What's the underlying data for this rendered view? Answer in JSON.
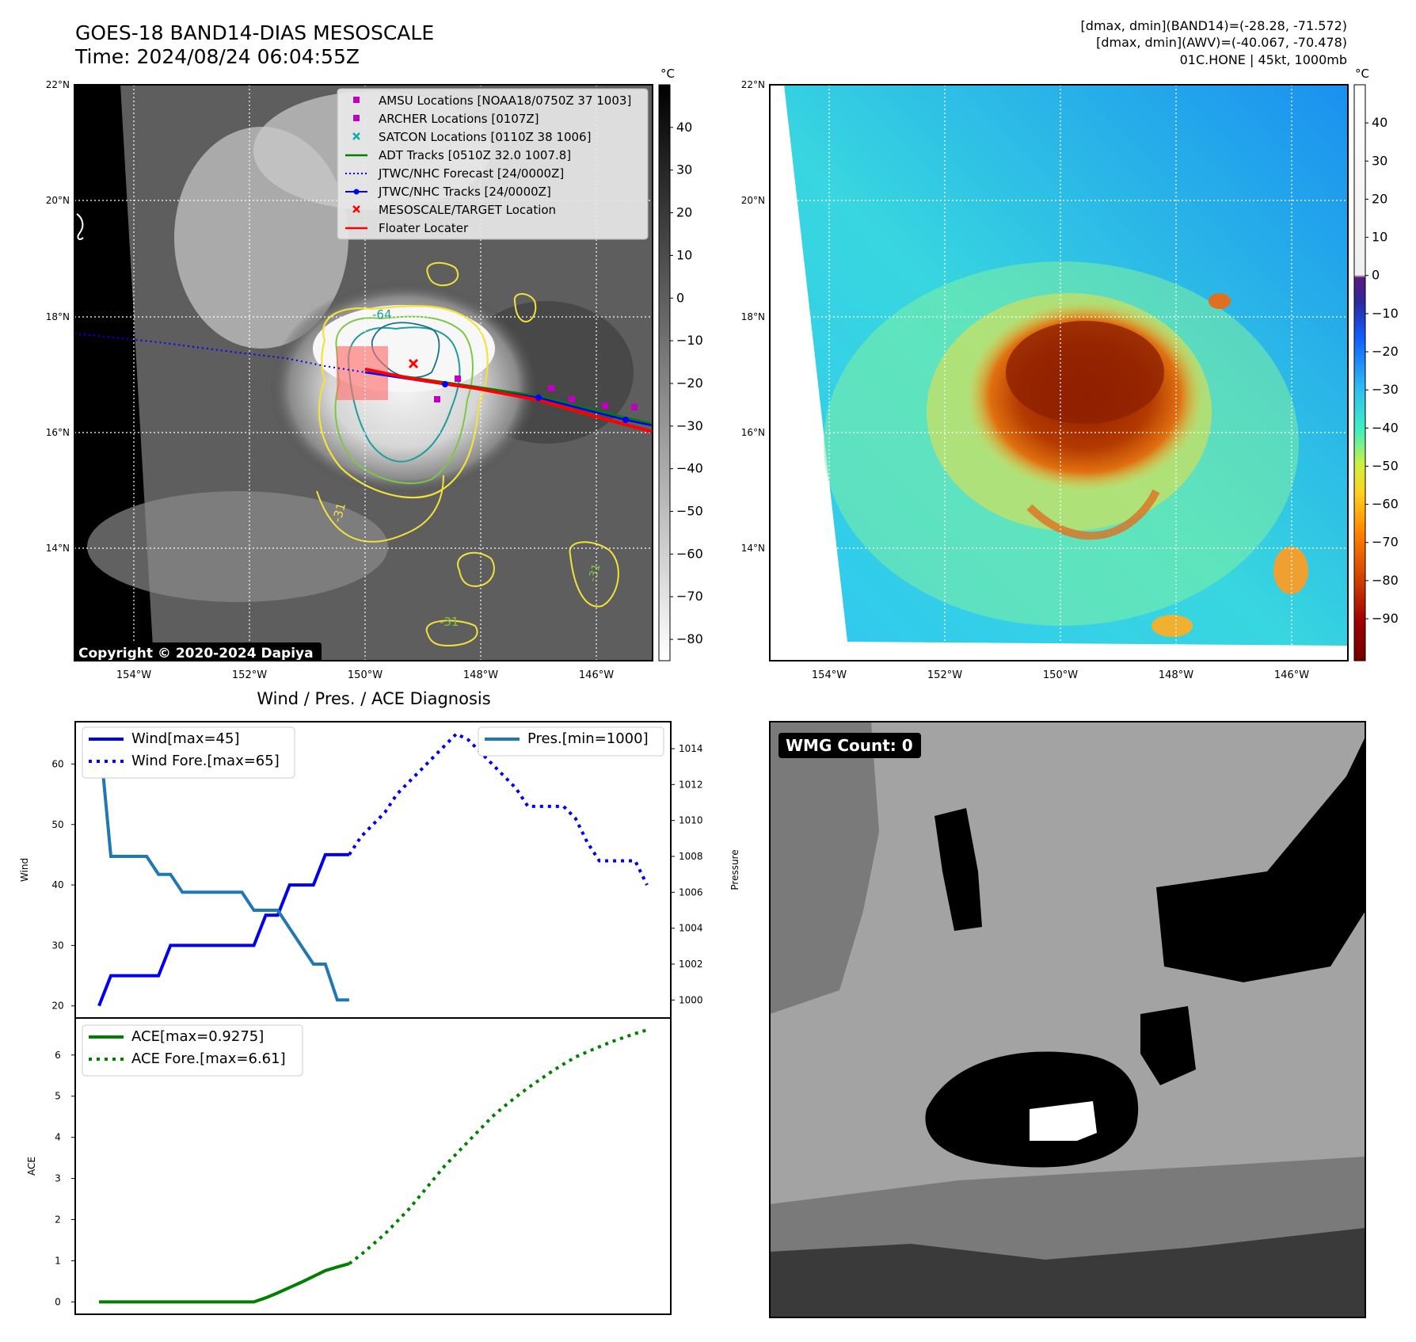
{
  "header": {
    "title_line1": "GOES-18 BAND14-DIAS MESOSCALE",
    "title_line2": "Time: 2024/08/24 06:04:55Z",
    "dmax_band14": "[dmax, dmin](BAND14)=(-28.28, -71.572)",
    "dmax_awv": "[dmax, dmin](AWV)=(-40.067, -70.478)",
    "storm_info": "01C.HONE | 45kt, 1000mb"
  },
  "map_left": {
    "lat_labels": [
      "22°N",
      "20°N",
      "18°N",
      "16°N",
      "14°N"
    ],
    "lon_labels": [
      "154°W",
      "152°W",
      "150°W",
      "148°W",
      "146°W"
    ],
    "copyright": "Copyright © 2020-2024 Dapiya",
    "contour_labels": [
      "-64",
      "-31",
      "-31",
      "-31"
    ],
    "legend": [
      {
        "label": "AMSU Locations [NOAA18/0750Z 37 1003]",
        "marker": "square",
        "color": "#c000c0"
      },
      {
        "label": "ARCHER Locations [0107Z]",
        "marker": "square",
        "color": "#c000c0"
      },
      {
        "label": "SATCON Locations [0110Z 38 1006]",
        "marker": "x",
        "color": "#00b0b0"
      },
      {
        "label": "ADT Tracks [0510Z 32.0 1007.8]",
        "marker": "line",
        "color": "#008000"
      },
      {
        "label": "JTWC/NHC Forecast [24/0000Z]",
        "marker": "dotted",
        "color": "#0000ff"
      },
      {
        "label": "JTWC/NHC Tracks [24/0000Z]",
        "marker": "line-dot",
        "color": "#0000ff"
      },
      {
        "label": "MESOSCALE/TARGET Location",
        "marker": "x",
        "color": "#ff0000"
      },
      {
        "label": "Floater Locater",
        "marker": "line",
        "color": "#ff0000"
      }
    ],
    "colorbar_unit": "°C",
    "colorbar_ticks": [
      "40",
      "30",
      "20",
      "10",
      "0",
      "−10",
      "−20",
      "−30",
      "−40",
      "−50",
      "−60",
      "−70",
      "−80"
    ]
  },
  "map_right": {
    "lat_labels": [
      "22°N",
      "20°N",
      "18°N",
      "16°N",
      "14°N"
    ],
    "lon_labels": [
      "154°W",
      "152°W",
      "150°W",
      "148°W",
      "146°W"
    ],
    "colorbar_unit": "°C",
    "colorbar_ticks": [
      "40",
      "30",
      "20",
      "10",
      "0",
      "−10",
      "−20",
      "−30",
      "−40",
      "−50",
      "−60",
      "−70",
      "−80",
      "−90"
    ]
  },
  "wmg": {
    "label": "WMG Count: 0"
  },
  "chart_data": [
    {
      "type": "line",
      "title": "Wind / Pres. / ACE Diagnosis",
      "ylabel": "Wind",
      "ylabel_right": "Pressure",
      "ylim": [
        18,
        67
      ],
      "ylim_right": [
        999,
        1015.5
      ],
      "yticks": [
        20,
        30,
        40,
        50,
        60
      ],
      "yticks_right": [
        1000,
        1002,
        1004,
        1006,
        1008,
        1010,
        1012,
        1014
      ],
      "legend": [
        "Wind[max=45]",
        "Wind Fore.[max=65]",
        "Pres.[min=1000]"
      ],
      "series": [
        {
          "name": "Wind[max=45]",
          "color": "#0000ee",
          "style": "solid",
          "axis": "left",
          "x": [
            0,
            1,
            2,
            3,
            4,
            5,
            6,
            7,
            8,
            9,
            10,
            11,
            12,
            13,
            14,
            15,
            16,
            17,
            18,
            19,
            20,
            21
          ],
          "values": [
            20,
            25,
            25,
            25,
            25,
            25,
            30,
            30,
            30,
            30,
            30,
            30,
            30,
            30,
            35,
            35,
            40,
            40,
            40,
            45,
            45,
            45
          ]
        },
        {
          "name": "Wind Fore.[max=65]",
          "color": "#0000ee",
          "style": "dotted",
          "axis": "left",
          "x": [
            21,
            22,
            23,
            24,
            25,
            26,
            27,
            28,
            29,
            30,
            31,
            32,
            33,
            34,
            35,
            36,
            37,
            38,
            39,
            40,
            41,
            42,
            43,
            44,
            45,
            46
          ],
          "values": [
            45,
            48,
            50,
            52,
            55,
            57,
            59,
            61,
            63,
            65,
            64,
            62,
            60,
            58,
            56,
            53,
            53,
            53,
            53,
            51,
            47,
            44,
            44,
            44,
            44,
            40
          ]
        },
        {
          "name": "Pres.[min=1000]",
          "color": "#1f77b4",
          "style": "solid",
          "axis": "right",
          "x": [
            0,
            1,
            2,
            3,
            4,
            5,
            6,
            7,
            8,
            9,
            10,
            11,
            12,
            13,
            14,
            15,
            16,
            17,
            18,
            19,
            20,
            21
          ],
          "values": [
            1015,
            1008,
            1008,
            1008,
            1008,
            1007,
            1007,
            1006,
            1006,
            1006,
            1006,
            1006,
            1006,
            1005,
            1005,
            1005,
            1004,
            1003,
            1002,
            1002,
            1000,
            1000
          ]
        }
      ]
    },
    {
      "type": "line",
      "ylabel": "ACE",
      "ylim": [
        -0.3,
        6.9
      ],
      "yticks": [
        0,
        1,
        2,
        3,
        4,
        5,
        6
      ],
      "legend": [
        "ACE[max=0.9275]",
        "ACE Fore.[max=6.61]"
      ],
      "series": [
        {
          "name": "ACE[max=0.9275]",
          "color": "#008000",
          "style": "solid",
          "x": [
            0,
            1,
            2,
            3,
            4,
            5,
            6,
            7,
            8,
            9,
            10,
            11,
            12,
            13,
            14,
            15,
            16,
            17,
            18,
            19,
            20,
            21
          ],
          "values": [
            0,
            0,
            0,
            0,
            0,
            0,
            0,
            0,
            0,
            0,
            0,
            0,
            0,
            0,
            0.1,
            0.22,
            0.35,
            0.48,
            0.62,
            0.76,
            0.85,
            0.9275
          ]
        },
        {
          "name": "ACE Fore.[max=6.61]",
          "color": "#008000",
          "style": "dotted",
          "x": [
            21,
            22,
            23,
            24,
            25,
            26,
            27,
            28,
            29,
            30,
            31,
            32,
            33,
            34,
            35,
            36,
            37,
            38,
            39,
            40,
            41,
            42,
            43,
            44,
            45,
            46
          ],
          "values": [
            0.9275,
            1.15,
            1.4,
            1.65,
            1.95,
            2.25,
            2.6,
            2.95,
            3.3,
            3.6,
            3.9,
            4.2,
            4.5,
            4.75,
            4.98,
            5.2,
            5.4,
            5.6,
            5.78,
            5.95,
            6.08,
            6.2,
            6.32,
            6.42,
            6.52,
            6.61
          ]
        }
      ]
    }
  ]
}
